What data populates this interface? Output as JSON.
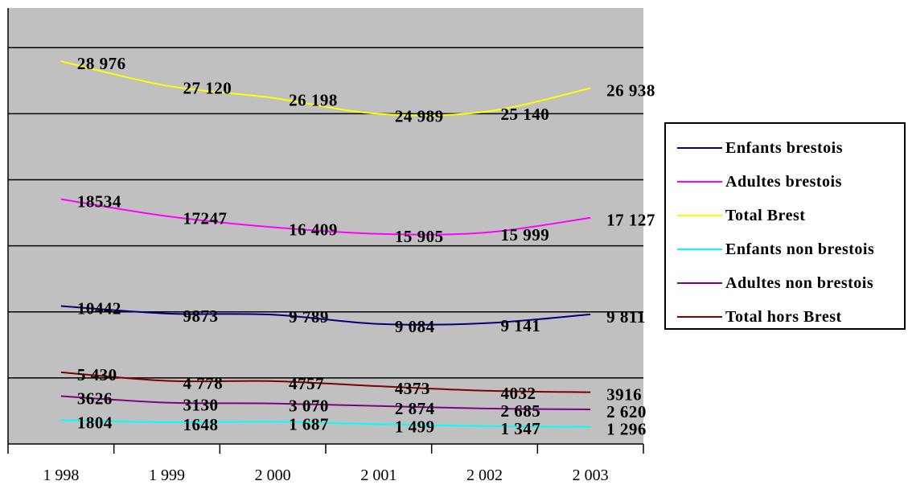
{
  "chart_data": {
    "type": "line",
    "categories": [
      "1 998",
      "1 999",
      "2 000",
      "2 001",
      "2 002",
      "2 003"
    ],
    "ylim": [
      0,
      33000
    ],
    "grid": true,
    "legend_position": "right",
    "plot_background": "#c0c0c0",
    "series": [
      {
        "name": "Enfants brestois",
        "color": "#000080",
        "values": [
          10442,
          9873,
          9789,
          9084,
          9141,
          9811
        ],
        "labels": [
          "10442",
          "9873",
          "9 789",
          "9 084",
          "9 141",
          "9 811"
        ]
      },
      {
        "name": "Adultes brestois",
        "color": "#ff00ff",
        "values": [
          18534,
          17247,
          16409,
          15905,
          15999,
          17127
        ],
        "labels": [
          "18534",
          "17247",
          "16 409",
          "15 905",
          "15 999",
          "17 127"
        ]
      },
      {
        "name": "Total Brest",
        "color": "#ffff00",
        "values": [
          28976,
          27120,
          26198,
          24989,
          25140,
          26938
        ],
        "labels": [
          "28 976",
          "27 120",
          "26 198",
          "24 989",
          "25 140",
          "26 938"
        ]
      },
      {
        "name": "Enfants non brestois",
        "color": "#00ffff",
        "values": [
          1804,
          1648,
          1687,
          1499,
          1347,
          1296
        ],
        "labels": [
          "1804",
          "1648",
          "1 687",
          "1 499",
          "1 347",
          "1 296"
        ]
      },
      {
        "name": "Adultes non brestois",
        "color": "#800080",
        "values": [
          3626,
          3130,
          3070,
          2874,
          2685,
          2620
        ],
        "labels": [
          "3626",
          "3130",
          "3 070",
          "2 874",
          "2 685",
          "2 620"
        ]
      },
      {
        "name": "Total hors Brest",
        "color": "#800000",
        "values": [
          5430,
          4778,
          4757,
          4373,
          4032,
          3916
        ],
        "labels": [
          "5 430",
          "4 778",
          "4757",
          "4373",
          "4032",
          "3916"
        ]
      }
    ]
  }
}
